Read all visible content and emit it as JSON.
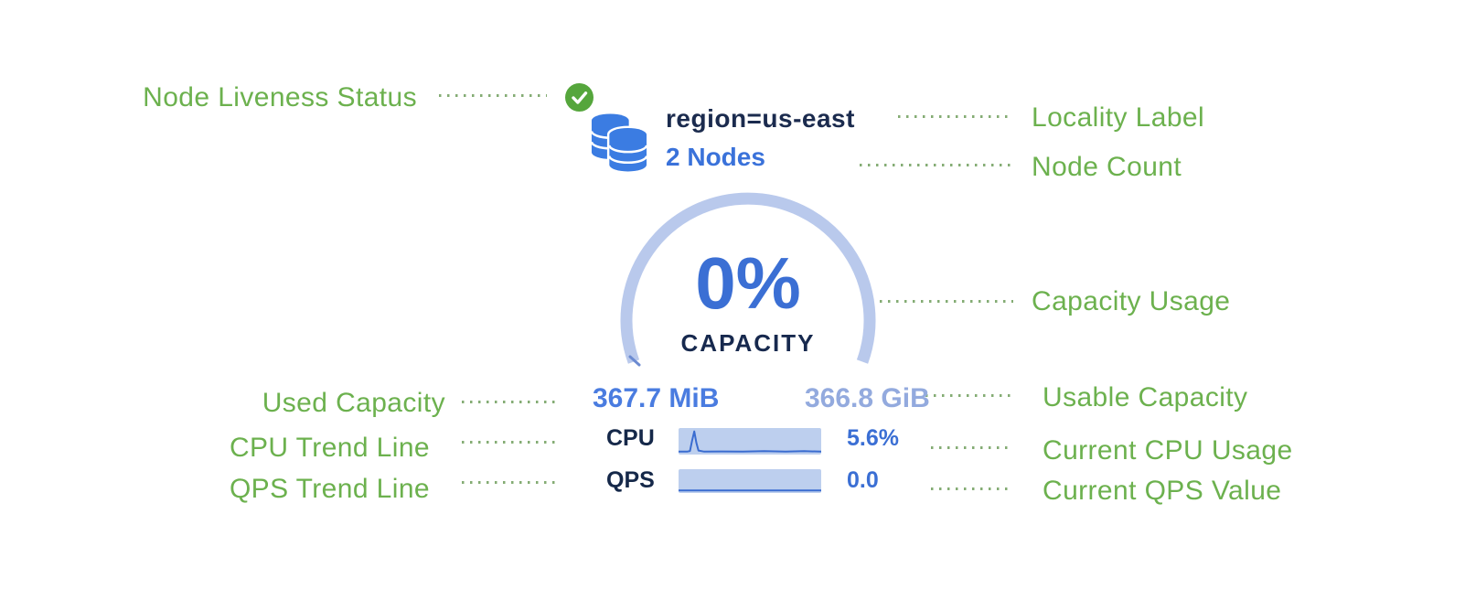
{
  "colors": {
    "annotation_green": "#6cb14e",
    "leader_green": "#6f9e5c",
    "navy": "#1b2b4e",
    "accent_blue": "#3b6fd4",
    "node_count_blue": "#3a72da",
    "arc_light_blue": "#b9c9ec",
    "arc_tick_blue": "#6c8bd1",
    "used_capacity_blue": "#4a7ce0",
    "usable_capacity_blue": "#93aade",
    "spark_bg": "#bdcfee",
    "spark_line": "#3a6cd0",
    "check_green": "#55a63c",
    "db_blue": "#3b7ce2",
    "check_mark_white": "#ffffff"
  },
  "annotations": {
    "left": [
      {
        "label": "Node Liveness Status"
      },
      {
        "label": "Used Capacity"
      },
      {
        "label": "CPU Trend Line"
      },
      {
        "label": "QPS Trend Line"
      }
    ],
    "right": [
      {
        "label": "Locality Label"
      },
      {
        "label": "Node Count"
      },
      {
        "label": "Capacity Usage"
      },
      {
        "label": "Usable Capacity"
      },
      {
        "label": "Current CPU Usage"
      },
      {
        "label": "Current QPS Value"
      }
    ]
  },
  "card": {
    "liveness_icon": "check-circle-icon",
    "nodes_icon": "database-stack-icon",
    "locality": "region=us-east",
    "node_count": "2 Nodes",
    "capacity_percent": "0%",
    "capacity_label": "CAPACITY",
    "used_capacity": "367.7 MiB",
    "usable_capacity": "366.8 GiB",
    "cpu": {
      "label": "CPU",
      "value": "5.6%",
      "trend": [
        [
          0,
          0.05
        ],
        [
          0.06,
          0.05
        ],
        [
          0.08,
          0.08
        ],
        [
          0.095,
          0.55
        ],
        [
          0.11,
          0.97
        ],
        [
          0.125,
          0.45
        ],
        [
          0.14,
          0.1
        ],
        [
          0.18,
          0.05
        ],
        [
          0.3,
          0.06
        ],
        [
          0.45,
          0.05
        ],
        [
          0.6,
          0.07
        ],
        [
          0.75,
          0.05
        ],
        [
          0.88,
          0.07
        ],
        [
          1,
          0.05
        ]
      ]
    },
    "qps": {
      "label": "QPS",
      "value": "0.0",
      "trend": [
        [
          0,
          0.04
        ],
        [
          0.5,
          0.04
        ],
        [
          1,
          0.04
        ]
      ]
    }
  }
}
